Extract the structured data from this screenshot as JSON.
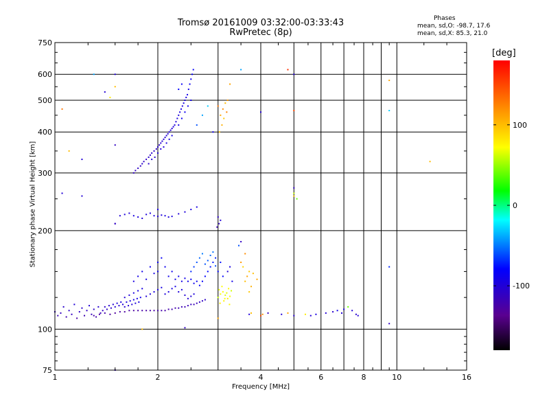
{
  "title_line1": "Tromsø 20161009 03:32:00-03:33:43",
  "title_line2": "RwPretec (8p)",
  "stats": {
    "heading": "Phases",
    "line1": "mean, sd,O: -98.7, 17.6",
    "line2": "mean, sd,X:  85.3, 21.0"
  },
  "colorbar": {
    "unit": "[deg]",
    "range": [
      -180,
      180
    ],
    "ticks": [
      {
        "value": 100,
        "label": "100"
      },
      {
        "value": 0,
        "label": "0"
      },
      {
        "value": -100,
        "label": "-100"
      }
    ]
  },
  "chart_data": {
    "type": "scatter",
    "xlabel": "Frequency [MHz]",
    "ylabel": "Stationary phase Virtual Height [km]",
    "xscale": "log",
    "yscale": "log",
    "xlim": [
      1,
      16
    ],
    "ylim": [
      75,
      750
    ],
    "xticks": [
      {
        "value": 1,
        "label": "1"
      },
      {
        "value": 2,
        "label": "2"
      },
      {
        "value": 4,
        "label": "4"
      },
      {
        "value": 6,
        "label": "6"
      },
      {
        "value": 8,
        "label": "8"
      },
      {
        "value": 10,
        "label": "10"
      },
      {
        "value": 16,
        "label": "16"
      }
    ],
    "x_minor": [
      3,
      5,
      7,
      9
    ],
    "yticks": [
      {
        "value": 75,
        "label": "75"
      },
      {
        "value": 100,
        "label": "100"
      },
      {
        "value": 200,
        "label": "200"
      },
      {
        "value": 300,
        "label": "300"
      },
      {
        "value": 400,
        "label": "400"
      },
      {
        "value": 500,
        "label": "500"
      },
      {
        "value": 600,
        "label": "600"
      },
      {
        "value": 750,
        "label": "750"
      }
    ],
    "grid": true,
    "color_variable": "phase [deg]",
    "points": [
      [
        1.0,
        113,
        -110
      ],
      [
        1.02,
        110,
        -115
      ],
      [
        1.04,
        112,
        -112
      ],
      [
        1.06,
        117,
        -105
      ],
      [
        1.08,
        109,
        -120
      ],
      [
        1.1,
        114,
        -108
      ],
      [
        1.12,
        111,
        -112
      ],
      [
        1.14,
        119,
        -100
      ],
      [
        1.16,
        108,
        -125
      ],
      [
        1.18,
        113,
        -110
      ],
      [
        1.2,
        116,
        -105
      ],
      [
        1.22,
        110,
        -118
      ],
      [
        1.24,
        114,
        -110
      ],
      [
        1.26,
        118,
        -100
      ],
      [
        1.28,
        111,
        -115
      ],
      [
        1.3,
        115,
        -108
      ],
      [
        1.32,
        109,
        -122
      ],
      [
        1.34,
        117,
        -104
      ],
      [
        1.36,
        112,
        -114
      ],
      [
        1.38,
        114,
        -110
      ],
      [
        1.4,
        117,
        -105
      ],
      [
        1.42,
        115,
        -108
      ],
      [
        1.44,
        118,
        -102
      ],
      [
        1.46,
        116,
        -106
      ],
      [
        1.48,
        119,
        -100
      ],
      [
        1.5,
        117,
        -104
      ],
      [
        1.52,
        120,
        -98
      ],
      [
        1.54,
        118,
        -102
      ],
      [
        1.56,
        121,
        -96
      ],
      [
        1.58,
        119,
        -100
      ],
      [
        1.6,
        117,
        -104
      ],
      [
        1.62,
        121,
        -96
      ],
      [
        1.64,
        118,
        -102
      ],
      [
        1.66,
        122,
        -94
      ],
      [
        1.68,
        119,
        -100
      ],
      [
        1.7,
        123,
        -92
      ],
      [
        1.72,
        120,
        -98
      ],
      [
        1.74,
        124,
        -92
      ],
      [
        1.76,
        121,
        -96
      ],
      [
        1.78,
        125,
        -90
      ],
      [
        1.3,
        110,
        -125
      ],
      [
        1.35,
        111,
        -128
      ],
      [
        1.4,
        112,
        -124
      ],
      [
        1.45,
        111,
        -128
      ],
      [
        1.5,
        112,
        -130
      ],
      [
        1.55,
        113,
        -126
      ],
      [
        1.6,
        113,
        -128
      ],
      [
        1.65,
        114,
        -126
      ],
      [
        1.7,
        114,
        -128
      ],
      [
        1.75,
        114,
        -126
      ],
      [
        1.8,
        114,
        -124
      ],
      [
        1.85,
        114,
        -126
      ],
      [
        1.9,
        114,
        -124
      ],
      [
        1.95,
        114,
        -126
      ],
      [
        2.0,
        114,
        -124
      ],
      [
        2.05,
        114,
        -122
      ],
      [
        2.1,
        114,
        -124
      ],
      [
        2.15,
        115,
        -122
      ],
      [
        2.2,
        115,
        -120
      ],
      [
        2.25,
        116,
        -122
      ],
      [
        2.3,
        116,
        -118
      ],
      [
        2.35,
        117,
        -116
      ],
      [
        2.4,
        117,
        -118
      ],
      [
        2.45,
        118,
        -116
      ],
      [
        2.5,
        119,
        -114
      ],
      [
        2.55,
        119,
        -116
      ],
      [
        2.6,
        120,
        -114
      ],
      [
        2.65,
        121,
        -112
      ],
      [
        2.7,
        122,
        -110
      ],
      [
        2.75,
        123,
        -108
      ],
      [
        1.6,
        125,
        -100
      ],
      [
        1.65,
        127,
        -98
      ],
      [
        1.7,
        129,
        -96
      ],
      [
        1.75,
        131,
        -95
      ],
      [
        1.8,
        133,
        -94
      ],
      [
        1.85,
        126,
        -100
      ],
      [
        1.9,
        128,
        -98
      ],
      [
        1.95,
        130,
        -96
      ],
      [
        2.0,
        132,
        -95
      ],
      [
        2.05,
        134,
        -94
      ],
      [
        2.1,
        128,
        -98
      ],
      [
        2.15,
        130,
        -96
      ],
      [
        2.2,
        133,
        -95
      ],
      [
        2.25,
        135,
        -92
      ],
      [
        2.3,
        130,
        -98
      ],
      [
        2.35,
        132,
        -96
      ],
      [
        2.4,
        127,
        -100
      ],
      [
        2.45,
        124,
        -102
      ],
      [
        2.5,
        126,
        -100
      ],
      [
        2.55,
        128,
        -98
      ],
      [
        1.7,
        140,
        -95
      ],
      [
        1.75,
        145,
        -92
      ],
      [
        1.8,
        150,
        -90
      ],
      [
        1.85,
        142,
        -94
      ],
      [
        1.9,
        155,
        -88
      ],
      [
        1.95,
        148,
        -92
      ],
      [
        2.0,
        160,
        -86
      ],
      [
        2.0,
        150,
        -90
      ],
      [
        2.05,
        165,
        -84
      ],
      [
        2.1,
        155,
        -88
      ],
      [
        2.15,
        145,
        -90
      ],
      [
        2.2,
        150,
        -88
      ],
      [
        2.25,
        142,
        -92
      ],
      [
        2.3,
        145,
        -90
      ],
      [
        2.35,
        140,
        -92
      ],
      [
        2.4,
        143,
        -90
      ],
      [
        2.45,
        140,
        -88
      ],
      [
        2.5,
        142,
        -86
      ],
      [
        2.55,
        138,
        -88
      ],
      [
        2.6,
        140,
        -86
      ],
      [
        2.65,
        136,
        -84
      ],
      [
        2.7,
        140,
        -82
      ],
      [
        2.75,
        145,
        -80
      ],
      [
        2.8,
        150,
        -78
      ],
      [
        2.85,
        155,
        -76
      ],
      [
        2.9,
        160,
        -74
      ],
      [
        2.95,
        165,
        -72
      ],
      [
        3.0,
        150,
        -78
      ],
      [
        3.05,
        160,
        -76
      ],
      [
        3.1,
        145,
        -80
      ],
      [
        2.5,
        150,
        -70
      ],
      [
        2.55,
        155,
        -65
      ],
      [
        2.6,
        160,
        -60
      ],
      [
        2.65,
        165,
        -55
      ],
      [
        2.7,
        170,
        -50
      ],
      [
        2.75,
        158,
        -60
      ],
      [
        2.8,
        162,
        -58
      ],
      [
        2.85,
        168,
        -55
      ],
      [
        2.9,
        172,
        -52
      ],
      [
        2.95,
        156,
        -62
      ],
      [
        1.7,
        300,
        -110
      ],
      [
        1.72,
        305,
        -112
      ],
      [
        1.75,
        310,
        -108
      ],
      [
        1.78,
        315,
        -110
      ],
      [
        1.8,
        320,
        -106
      ],
      [
        1.82,
        325,
        -108
      ],
      [
        1.85,
        330,
        -110
      ],
      [
        1.88,
        335,
        -106
      ],
      [
        1.9,
        340,
        -108
      ],
      [
        1.92,
        345,
        -104
      ],
      [
        1.95,
        350,
        -106
      ],
      [
        1.98,
        355,
        -108
      ],
      [
        2.0,
        360,
        -104
      ],
      [
        2.02,
        365,
        -106
      ],
      [
        2.04,
        370,
        -104
      ],
      [
        2.06,
        375,
        -102
      ],
      [
        2.08,
        380,
        -104
      ],
      [
        2.1,
        385,
        -102
      ],
      [
        2.12,
        390,
        -100
      ],
      [
        2.14,
        395,
        -102
      ],
      [
        2.16,
        400,
        -100
      ],
      [
        2.18,
        405,
        -102
      ],
      [
        2.2,
        410,
        -100
      ],
      [
        2.22,
        415,
        -98
      ],
      [
        2.24,
        420,
        -100
      ],
      [
        2.26,
        430,
        -98
      ],
      [
        2.28,
        440,
        -96
      ],
      [
        2.3,
        450,
        -98
      ],
      [
        2.32,
        460,
        -96
      ],
      [
        2.34,
        470,
        -94
      ],
      [
        2.36,
        480,
        -96
      ],
      [
        2.38,
        490,
        -94
      ],
      [
        2.4,
        500,
        -92
      ],
      [
        2.42,
        510,
        -94
      ],
      [
        2.44,
        520,
        -92
      ],
      [
        2.46,
        540,
        -90
      ],
      [
        2.48,
        560,
        -88
      ],
      [
        2.5,
        580,
        -86
      ],
      [
        2.52,
        600,
        -84
      ],
      [
        2.54,
        620,
        -82
      ],
      [
        1.88,
        320,
        -105
      ],
      [
        1.92,
        330,
        -100
      ],
      [
        1.96,
        335,
        -102
      ],
      [
        2.0,
        345,
        -98
      ],
      [
        2.04,
        355,
        -100
      ],
      [
        2.08,
        360,
        -98
      ],
      [
        2.12,
        370,
        -96
      ],
      [
        2.16,
        380,
        -94
      ],
      [
        2.2,
        390,
        -92
      ],
      [
        2.3,
        420,
        -90
      ],
      [
        2.35,
        440,
        -88
      ],
      [
        2.4,
        460,
        -86
      ],
      [
        2.45,
        480,
        -88
      ],
      [
        2.5,
        500,
        -86
      ],
      [
        2.6,
        420,
        -60
      ],
      [
        2.7,
        450,
        -40
      ],
      [
        2.8,
        480,
        -30
      ],
      [
        2.9,
        400,
        -90
      ],
      [
        2.3,
        540,
        -80
      ],
      [
        2.35,
        560,
        -84
      ],
      [
        1.55,
        222,
        -100
      ],
      [
        1.6,
        224,
        -98
      ],
      [
        1.65,
        226,
        -100
      ],
      [
        1.7,
        222,
        -96
      ],
      [
        1.75,
        220,
        -98
      ],
      [
        1.8,
        218,
        -100
      ],
      [
        1.85,
        224,
        -98
      ],
      [
        1.9,
        226,
        -96
      ],
      [
        1.95,
        222,
        -98
      ],
      [
        2.0,
        221,
        -100
      ],
      [
        2.05,
        223,
        -98
      ],
      [
        2.1,
        222,
        -96
      ],
      [
        2.15,
        220,
        -98
      ],
      [
        2.2,
        221,
        -96
      ],
      [
        2.3,
        225,
        -100
      ],
      [
        2.4,
        228,
        -98
      ],
      [
        2.5,
        232,
        -96
      ],
      [
        2.6,
        236,
        -94
      ],
      [
        1.5,
        210,
        -110
      ],
      [
        2.0,
        232,
        -96
      ],
      [
        3.02,
        210,
        -110
      ],
      [
        3.0,
        220,
        -108
      ],
      [
        3.05,
        215,
        -100
      ],
      [
        2.98,
        205,
        -115
      ],
      [
        3.0,
        125,
        60
      ],
      [
        3.05,
        128,
        70
      ],
      [
        3.1,
        130,
        75
      ],
      [
        3.15,
        127,
        65
      ],
      [
        3.2,
        124,
        80
      ],
      [
        3.25,
        126,
        70
      ],
      [
        3.02,
        132,
        68
      ],
      [
        3.08,
        135,
        72
      ],
      [
        3.12,
        122,
        78
      ],
      [
        3.18,
        129,
        66
      ],
      [
        3.22,
        133,
        74
      ],
      [
        3.28,
        131,
        62
      ],
      [
        3.04,
        120,
        80
      ],
      [
        3.14,
        124,
        72
      ],
      [
        3.24,
        119,
        76
      ],
      [
        3.05,
        450,
        110
      ],
      [
        3.1,
        470,
        120
      ],
      [
        3.15,
        490,
        100
      ],
      [
        3.0,
        480,
        130
      ],
      [
        3.2,
        500,
        115
      ],
      [
        3.08,
        420,
        105
      ],
      [
        3.12,
        440,
        95
      ],
      [
        3.18,
        460,
        125
      ],
      [
        3.03,
        400,
        100
      ],
      [
        3.25,
        560,
        110
      ],
      [
        3.6,
        140,
        100
      ],
      [
        3.65,
        145,
        110
      ],
      [
        3.7,
        150,
        95
      ],
      [
        3.75,
        135,
        105
      ],
      [
        3.5,
        160,
        115
      ],
      [
        3.55,
        155,
        90
      ],
      [
        3.8,
        148,
        100
      ],
      [
        3.9,
        142,
        110
      ],
      [
        3.7,
        130,
        95
      ],
      [
        3.6,
        170,
        120
      ],
      [
        3.5,
        185,
        -110
      ],
      [
        3.45,
        180,
        -60
      ],
      [
        3.2,
        150,
        -100
      ],
      [
        3.3,
        140,
        -90
      ],
      [
        3.25,
        155,
        -95
      ],
      [
        3.7,
        111,
        -100
      ],
      [
        3.75,
        112,
        100
      ],
      [
        4.0,
        110,
        150
      ],
      [
        4.05,
        111,
        120
      ],
      [
        4.2,
        112,
        -110
      ],
      [
        4.6,
        111,
        -100
      ],
      [
        4.8,
        112,
        110
      ],
      [
        5.0,
        110,
        -105
      ],
      [
        5.4,
        111,
        80
      ],
      [
        5.6,
        110,
        -100
      ],
      [
        5.8,
        111,
        -95
      ],
      [
        6.2,
        112,
        -100
      ],
      [
        6.5,
        113,
        -105
      ],
      [
        6.7,
        114,
        -90
      ],
      [
        6.9,
        112,
        -100
      ],
      [
        7.0,
        115,
        -95
      ],
      [
        7.2,
        117,
        40
      ],
      [
        7.4,
        114,
        -100
      ],
      [
        7.6,
        111,
        -105
      ],
      [
        7.7,
        110,
        -100
      ],
      [
        9.5,
        104,
        -110
      ],
      [
        9.5,
        155,
        -70
      ],
      [
        12.5,
        325,
        100
      ],
      [
        9.5,
        575,
        110
      ],
      [
        9.5,
        465,
        -30
      ],
      [
        5.0,
        465,
        150
      ],
      [
        4.0,
        460,
        -100
      ],
      [
        4.8,
        620,
        160
      ],
      [
        5.0,
        600,
        -100
      ],
      [
        5.0,
        270,
        -110
      ],
      [
        5.0,
        260,
        60
      ],
      [
        5.0,
        255,
        90
      ],
      [
        5.1,
        250,
        40
      ],
      [
        1.05,
        470,
        130
      ],
      [
        1.1,
        350,
        100
      ],
      [
        1.2,
        330,
        -100
      ],
      [
        1.2,
        255,
        -100
      ],
      [
        1.3,
        600,
        -40
      ],
      [
        1.4,
        530,
        -100
      ],
      [
        1.45,
        510,
        80
      ],
      [
        1.5,
        550,
        100
      ],
      [
        1.5,
        600,
        -100
      ],
      [
        1.5,
        365,
        -110
      ],
      [
        1.5,
        210,
        -110
      ],
      [
        1.5,
        75,
        -110
      ],
      [
        1.8,
        100,
        100
      ],
      [
        2.4,
        101,
        -110
      ],
      [
        3.0,
        108,
        110
      ],
      [
        3.5,
        620,
        -40
      ],
      [
        1.05,
        260,
        -100
      ]
    ]
  }
}
